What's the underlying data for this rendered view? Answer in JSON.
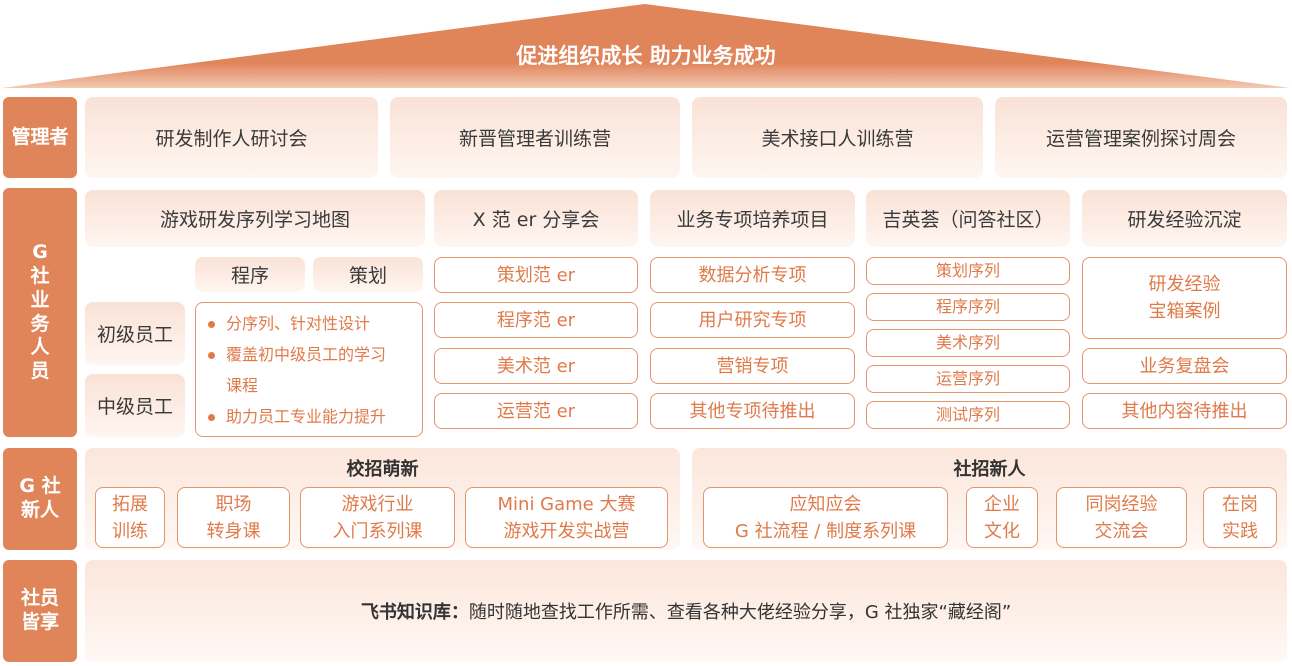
{
  "roof": {
    "title": "促进组织成长 助力业务成功"
  },
  "colors": {
    "accent": "#E0845A",
    "text_accent": "#E07A4A",
    "card_light": "#F9E2D6"
  },
  "managers": {
    "label": "管理者",
    "items": [
      "研发制作人研讨会",
      "新晋管理者训练营",
      "美术接口人训练营",
      "运营管理案例探讨周会"
    ]
  },
  "staff": {
    "label": "G\n社\n业\n务\n人\n员",
    "headers": [
      "游戏研发序列学习地图",
      "X 范 er 分享会",
      "业务专项培养项目",
      "吉英荟（问答社区）",
      "研发经验沉淀"
    ],
    "map": {
      "tracks": [
        "程序",
        "策划"
      ],
      "levels": [
        "初级员工",
        "中级员工"
      ],
      "bullets": [
        "分序列、针对性设计",
        "覆盖初中级员工的学习课程",
        "助力员工专业能力提升"
      ]
    },
    "xfan": [
      "策划范 er",
      "程序范 er",
      "美术范 er",
      "运营范 er"
    ],
    "special": [
      "数据分析专项",
      "用户研究专项",
      "营销专项",
      "其他专项待推出"
    ],
    "community": [
      "策划序列",
      "程序序列",
      "美术序列",
      "运营序列",
      "测试序列"
    ],
    "experience": [
      "研发经验\n宝箱案例",
      "业务复盘会",
      "其他内容待推出"
    ]
  },
  "newcomers": {
    "label": "G 社\n新人",
    "campus": {
      "title": "校招萌新",
      "items": [
        "拓展\n训练",
        "职场\n转身课",
        "游戏行业\n入门系列课",
        "Mini Game 大赛\n游戏开发实战营"
      ]
    },
    "social": {
      "title": "社招新人",
      "items": [
        "应知应会\nG 社流程 / 制度系列课",
        "企业\n文化",
        "同岗经验\n交流会",
        "在岗\n实践"
      ]
    }
  },
  "all": {
    "label": "社员\n皆享",
    "prefix": "飞书知识库：",
    "text": "随时随地查找工作所需、查看各种大佬经验分享，G 社独家“藏经阁”"
  }
}
